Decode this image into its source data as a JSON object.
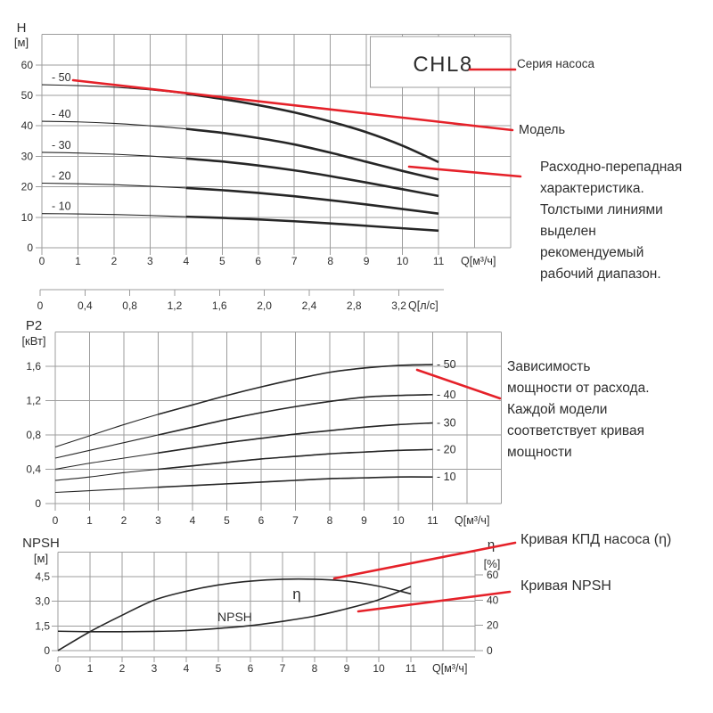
{
  "branding": {
    "series_name": "CHL8"
  },
  "annotations": {
    "series": "Серия насоса",
    "model": "Модель",
    "head_note": "Расходно-перепадная\nхарактеристика.\nТолстыми линиями\nвыделен\nрекомендуемый\nрабочий диапазон.",
    "power_note": "Зависимость\nмощности от расхода.\nКаждой модели\nсоответствует кривая\nмощности",
    "eta_note": "Кривая КПД насоса (η)",
    "npsh_note": "Кривая NPSH"
  },
  "colors": {
    "accent": "#E52129",
    "curve": "#262626",
    "grid": "#9C9C9C",
    "text": "#2F2F2F"
  },
  "chart_data": [
    {
      "id": "head_flow",
      "type": "line",
      "y_axis_title": "H",
      "y_axis_unit": "[м]",
      "x_label": "Q[м³/ч]",
      "x_ticks": [
        0,
        1,
        2,
        3,
        4,
        5,
        6,
        7,
        8,
        9,
        10,
        11
      ],
      "y_ticks": [
        0,
        10,
        20,
        30,
        40,
        50,
        60
      ],
      "ylim": [
        0,
        70
      ],
      "xlim": [
        0,
        13
      ],
      "grid": true,
      "recommended_range_q": [
        4,
        11
      ],
      "series": [
        {
          "name": "-50",
          "label": "- 50",
          "values": [
            53.5,
            53.2,
            52.7,
            51.8,
            50.5,
            48.8,
            46.8,
            44.4,
            41.4,
            37.9,
            33.5,
            28.1
          ]
        },
        {
          "name": "-40",
          "label": "- 40",
          "values": [
            41.5,
            41.3,
            40.8,
            40.0,
            39.0,
            37.7,
            36.0,
            33.9,
            31.2,
            28.2,
            25.2,
            22.4
          ]
        },
        {
          "name": "-30",
          "label": "- 30",
          "values": [
            31.3,
            31.1,
            30.7,
            30.1,
            29.3,
            28.3,
            27.0,
            25.4,
            23.5,
            21.4,
            19.2,
            17.0
          ]
        },
        {
          "name": "-20",
          "label": "- 20",
          "values": [
            21.2,
            21.0,
            20.7,
            20.2,
            19.6,
            18.9,
            18.0,
            16.9,
            15.6,
            14.2,
            12.7,
            11.2
          ]
        },
        {
          "name": "-10",
          "label": "- 10",
          "values": [
            11.2,
            11.1,
            10.9,
            10.6,
            10.2,
            9.8,
            9.3,
            8.7,
            8.0,
            7.2,
            6.4,
            5.6
          ]
        }
      ],
      "secondary_x_scale": {
        "label": "Q[л/с]",
        "tick_values": [
          0,
          0.4,
          0.8,
          1.2,
          1.6,
          2.0,
          2.4,
          2.8,
          3.2
        ],
        "tick_labels": [
          "0",
          "0,4",
          "0,8",
          "1,2",
          "1,6",
          "2,0",
          "2,4",
          "2,8",
          "3,2"
        ]
      }
    },
    {
      "id": "power_flow",
      "type": "line",
      "y_axis_title": "P2",
      "y_axis_unit": "[кВт]",
      "x_label": "Q[м³/ч]",
      "x_ticks": [
        0,
        1,
        2,
        3,
        4,
        5,
        6,
        7,
        8,
        9,
        10,
        11
      ],
      "y_ticks": [
        0,
        0.4,
        0.8,
        1.2,
        1.6
      ],
      "y_tick_labels": [
        "0",
        "0,4",
        "0,8",
        "1,2",
        "1,6"
      ],
      "ylim": [
        0,
        2.0
      ],
      "xlim": [
        0,
        13
      ],
      "grid": true,
      "series": [
        {
          "name": "-50",
          "label": "- 50",
          "values": [
            0.66,
            0.79,
            0.92,
            1.04,
            1.15,
            1.26,
            1.36,
            1.45,
            1.53,
            1.58,
            1.61,
            1.62
          ]
        },
        {
          "name": "-40",
          "label": "- 40",
          "values": [
            0.53,
            0.62,
            0.71,
            0.8,
            0.89,
            0.98,
            1.06,
            1.13,
            1.19,
            1.24,
            1.26,
            1.27
          ]
        },
        {
          "name": "-30",
          "label": "- 30",
          "values": [
            0.4,
            0.47,
            0.53,
            0.59,
            0.65,
            0.71,
            0.76,
            0.81,
            0.85,
            0.89,
            0.92,
            0.94
          ]
        },
        {
          "name": "-20",
          "label": "- 20",
          "values": [
            0.27,
            0.31,
            0.36,
            0.4,
            0.44,
            0.48,
            0.52,
            0.55,
            0.58,
            0.6,
            0.62,
            0.63
          ]
        },
        {
          "name": "-10",
          "label": "- 10",
          "values": [
            0.13,
            0.15,
            0.17,
            0.19,
            0.21,
            0.23,
            0.25,
            0.27,
            0.29,
            0.3,
            0.31,
            0.31
          ]
        }
      ]
    },
    {
      "id": "npsh_eta",
      "type": "line",
      "left_axis_title": "NPSH",
      "left_axis_unit": "[м]",
      "right_axis_title": "η",
      "right_axis_unit": "[%]",
      "x_label": "Q[м³/ч]",
      "x_ticks": [
        0,
        1,
        2,
        3,
        4,
        5,
        6,
        7,
        8,
        9,
        10,
        11
      ],
      "left_ticks": [
        0,
        1.5,
        3.0,
        4.5
      ],
      "left_tick_labels": [
        "0",
        "1,5",
        "3,0",
        "4,5"
      ],
      "right_ticks": [
        0,
        20,
        40,
        60
      ],
      "left_ylim": [
        0,
        6.0
      ],
      "right_ylim": [
        0,
        84
      ],
      "xlim": [
        0,
        13
      ],
      "grid": true,
      "series": [
        {
          "name": "η",
          "axis": "right",
          "unit": "%",
          "values": [
            0,
            15,
            28,
            40,
            47,
            52,
            55,
            56.5,
            56.5,
            55,
            51,
            45
          ]
        },
        {
          "name": "NPSH",
          "axis": "left",
          "unit": "м",
          "values": [
            1.18,
            1.15,
            1.15,
            1.17,
            1.22,
            1.35,
            1.52,
            1.78,
            2.1,
            2.55,
            3.1,
            3.9
          ]
        }
      ]
    }
  ]
}
